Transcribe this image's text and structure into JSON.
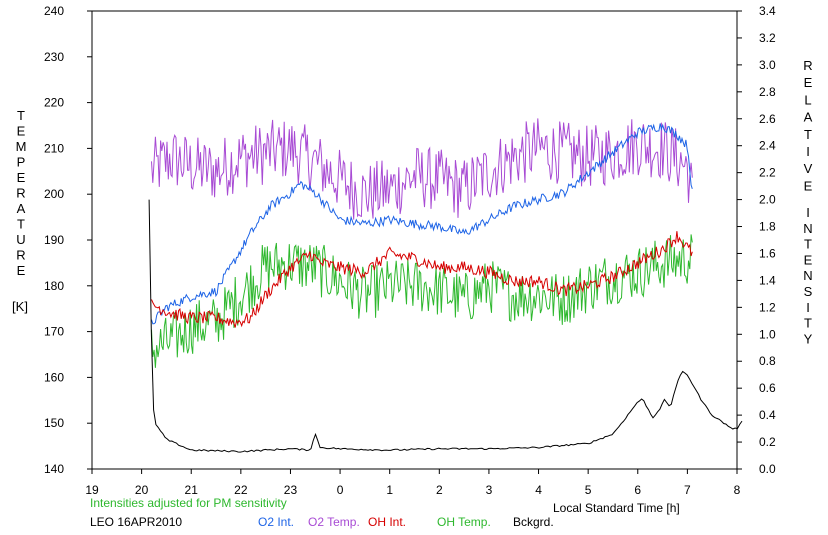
{
  "chart_data": {
    "type": "line",
    "x_unit": "Local Standard Time [h]",
    "x_ticks": [
      "19",
      "20",
      "21",
      "22",
      "23",
      "0",
      "1",
      "2",
      "3",
      "4",
      "5",
      "6",
      "7",
      "8"
    ],
    "x_range_hours": [
      19,
      32
    ],
    "left_axis": {
      "label_letters": [
        "T",
        "E",
        "M",
        "P",
        "E",
        "R",
        "A",
        "T",
        "U",
        "R",
        "E"
      ],
      "unit": "[K]",
      "range": [
        140,
        240
      ],
      "ticks": [
        "140",
        "150",
        "160",
        "170",
        "180",
        "190",
        "200",
        "210",
        "220",
        "230",
        "240"
      ]
    },
    "right_axis": {
      "label_word1": [
        "R",
        "E",
        "L",
        "A",
        "T",
        "I",
        "V",
        "E"
      ],
      "label_word2": [
        "I",
        "N",
        "T",
        "E",
        "N",
        "S",
        "I",
        "T",
        "Y"
      ],
      "range": [
        0,
        3.4
      ],
      "ticks": [
        "0.0",
        "0.2",
        "0.4",
        "0.6",
        "0.8",
        "1.0",
        "1.2",
        "1.4",
        "1.6",
        "1.8",
        "2.0",
        "2.2",
        "2.4",
        "2.6",
        "2.8",
        "3.0",
        "3.2",
        "3.4"
      ]
    },
    "note": "Intensities adjusted for PM sensitivity",
    "station": "LEO 16APR2010",
    "series": [
      {
        "name": "O2 Int.",
        "color": "#1e64e6",
        "axis": "right",
        "points": [
          [
            20.2,
            1.08
          ],
          [
            20.5,
            1.2
          ],
          [
            21.0,
            1.28
          ],
          [
            21.5,
            1.32
          ],
          [
            21.8,
            1.5
          ],
          [
            22.2,
            1.75
          ],
          [
            22.6,
            1.95
          ],
          [
            23.0,
            2.05
          ],
          [
            23.2,
            2.12
          ],
          [
            23.5,
            2.05
          ],
          [
            24.0,
            1.85
          ],
          [
            24.5,
            1.82
          ],
          [
            25.0,
            1.85
          ],
          [
            25.5,
            1.82
          ],
          [
            26.0,
            1.8
          ],
          [
            26.5,
            1.75
          ],
          [
            27.0,
            1.85
          ],
          [
            27.5,
            1.95
          ],
          [
            28.0,
            2.0
          ],
          [
            28.5,
            2.05
          ],
          [
            29.0,
            2.2
          ],
          [
            29.5,
            2.35
          ],
          [
            30.0,
            2.5
          ],
          [
            30.5,
            2.55
          ],
          [
            30.8,
            2.48
          ],
          [
            31.0,
            2.4
          ],
          [
            31.1,
            2.05
          ]
        ]
      },
      {
        "name": "O2 Temp.",
        "color": "#a84bd4",
        "axis": "left",
        "points": [
          [
            20.2,
            205
          ],
          [
            20.6,
            208
          ],
          [
            21.0,
            206
          ],
          [
            21.5,
            205
          ],
          [
            22.0,
            208
          ],
          [
            22.5,
            209
          ],
          [
            23.0,
            210
          ],
          [
            23.5,
            207
          ],
          [
            24.0,
            203
          ],
          [
            24.5,
            200
          ],
          [
            25.0,
            201
          ],
          [
            25.5,
            204
          ],
          [
            26.0,
            203
          ],
          [
            26.5,
            201
          ],
          [
            27.0,
            205
          ],
          [
            27.5,
            208
          ],
          [
            28.0,
            210
          ],
          [
            28.5,
            209
          ],
          [
            29.0,
            208
          ],
          [
            29.5,
            209
          ],
          [
            30.0,
            211
          ],
          [
            30.5,
            210
          ],
          [
            31.0,
            206
          ],
          [
            31.1,
            200
          ]
        ]
      },
      {
        "name": "OH Int.",
        "color": "#d60000",
        "axis": "left",
        "points": [
          [
            20.2,
            176
          ],
          [
            20.6,
            174
          ],
          [
            21.0,
            173
          ],
          [
            21.5,
            173
          ],
          [
            21.9,
            172
          ],
          [
            22.2,
            173
          ],
          [
            22.5,
            178
          ],
          [
            23.0,
            184
          ],
          [
            23.4,
            187
          ],
          [
            23.6,
            185
          ],
          [
            24.0,
            184
          ],
          [
            24.5,
            183
          ],
          [
            25.0,
            187
          ],
          [
            25.5,
            186
          ],
          [
            26.0,
            184
          ],
          [
            26.5,
            184
          ],
          [
            27.0,
            183
          ],
          [
            27.5,
            181
          ],
          [
            28.0,
            181
          ],
          [
            28.5,
            179
          ],
          [
            29.0,
            180
          ],
          [
            29.5,
            182
          ],
          [
            30.0,
            185
          ],
          [
            30.5,
            188
          ],
          [
            30.8,
            191
          ],
          [
            31.1,
            187
          ]
        ]
      },
      {
        "name": "OH Temp.",
        "color": "#2eb82e",
        "axis": "left",
        "points": [
          [
            20.2,
            166
          ],
          [
            20.6,
            168
          ],
          [
            21.0,
            171
          ],
          [
            21.5,
            172
          ],
          [
            22.0,
            178
          ],
          [
            22.5,
            184
          ],
          [
            23.0,
            185
          ],
          [
            23.5,
            184
          ],
          [
            24.0,
            181
          ],
          [
            24.5,
            178
          ],
          [
            25.0,
            180
          ],
          [
            25.5,
            180
          ],
          [
            26.0,
            179
          ],
          [
            26.5,
            177
          ],
          [
            27.0,
            180
          ],
          [
            27.5,
            178
          ],
          [
            28.0,
            178
          ],
          [
            28.5,
            177
          ],
          [
            29.0,
            180
          ],
          [
            29.5,
            182
          ],
          [
            30.0,
            183
          ],
          [
            30.5,
            185
          ],
          [
            31.0,
            186
          ],
          [
            31.1,
            186
          ]
        ]
      },
      {
        "name": "Bckgrd.",
        "color": "#000000",
        "axis": "right",
        "points": [
          [
            20.15,
            2.0
          ],
          [
            20.18,
            1.5
          ],
          [
            20.2,
            0.9
          ],
          [
            20.25,
            0.35
          ],
          [
            20.5,
            0.22
          ],
          [
            21.0,
            0.14
          ],
          [
            22.0,
            0.13
          ],
          [
            23.0,
            0.15
          ],
          [
            23.4,
            0.14
          ],
          [
            23.5,
            0.26
          ],
          [
            23.6,
            0.16
          ],
          [
            24.0,
            0.15
          ],
          [
            25.0,
            0.14
          ],
          [
            26.0,
            0.15
          ],
          [
            27.0,
            0.15
          ],
          [
            28.0,
            0.16
          ],
          [
            29.0,
            0.19
          ],
          [
            29.5,
            0.26
          ],
          [
            29.8,
            0.4
          ],
          [
            30.0,
            0.5
          ],
          [
            30.1,
            0.52
          ],
          [
            30.2,
            0.45
          ],
          [
            30.3,
            0.38
          ],
          [
            30.45,
            0.45
          ],
          [
            30.55,
            0.52
          ],
          [
            30.65,
            0.45
          ],
          [
            30.8,
            0.65
          ],
          [
            30.9,
            0.72
          ],
          [
            31.0,
            0.7
          ],
          [
            31.15,
            0.6
          ],
          [
            31.3,
            0.5
          ],
          [
            31.5,
            0.4
          ],
          [
            31.7,
            0.35
          ],
          [
            31.9,
            0.3
          ],
          [
            32.0,
            0.3
          ],
          [
            32.1,
            0.35
          ]
        ]
      }
    ]
  }
}
